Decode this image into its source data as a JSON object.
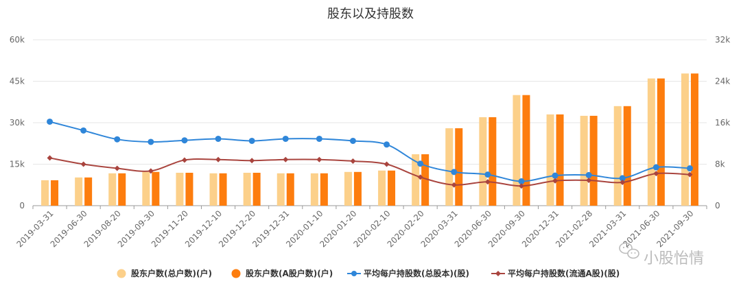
{
  "chart_data": {
    "type": "bar",
    "title": "股东以及持股数",
    "categories": [
      "2019-03-31",
      "2019-06-30",
      "2019-08-20",
      "2019-09-30",
      "2019-11-20",
      "2019-12-10",
      "2019-12-20",
      "2019-12-31",
      "2020-01-10",
      "2020-01-20",
      "2020-02-10",
      "2020-02-20",
      "2020-03-31",
      "2020-06-30",
      "2020-09-30",
      "2020-12-31",
      "2021-02-28",
      "2021-03-31",
      "2021-06-30",
      "2021-09-30"
    ],
    "left_axis": {
      "ticks": [
        "0",
        "15k",
        "30k",
        "45k",
        "60k"
      ],
      "ylim": [
        0,
        60000
      ]
    },
    "right_axis": {
      "ticks": [
        "0",
        "8k",
        "16k",
        "24k",
        "32k"
      ],
      "ylim": [
        0,
        32000
      ]
    },
    "series": [
      {
        "name": "股东户数(总户数)(户)",
        "type": "bar",
        "axis": "left",
        "color": "#fcd08a",
        "values": [
          9200,
          10200,
          11700,
          12200,
          11900,
          11700,
          11900,
          11700,
          11700,
          12200,
          12700,
          18600,
          28000,
          32000,
          40000,
          33000,
          32500,
          36000,
          46000,
          47800
        ]
      },
      {
        "name": "股东户数(A股户数)(户)",
        "type": "bar",
        "axis": "left",
        "color": "#fd7d0e",
        "values": [
          9200,
          10200,
          11700,
          12200,
          11900,
          11700,
          11900,
          11700,
          11700,
          12200,
          12700,
          18600,
          28000,
          32000,
          40000,
          33000,
          32500,
          36000,
          46000,
          47800
        ]
      },
      {
        "name": "平均每户持股数(总股本)(股)",
        "type": "line",
        "axis": "right",
        "color": "#2f86d9",
        "values": [
          16200,
          14500,
          12800,
          12300,
          12600,
          12900,
          12500,
          12900,
          12900,
          12500,
          11800,
          8100,
          6500,
          6000,
          4700,
          5800,
          5900,
          5300,
          7400,
          7200
        ]
      },
      {
        "name": "平均每户持股数(流通A股)(股)",
        "type": "line",
        "axis": "right",
        "color": "#a9443e",
        "values": [
          9200,
          8000,
          7200,
          6700,
          8800,
          8900,
          8700,
          8900,
          8900,
          8600,
          8000,
          5500,
          4000,
          4600,
          3800,
          4800,
          4900,
          4500,
          6200,
          6000
        ]
      }
    ],
    "grid": true,
    "legend_position": "bottom-center"
  },
  "watermark": {
    "text": "小股怡情"
  }
}
